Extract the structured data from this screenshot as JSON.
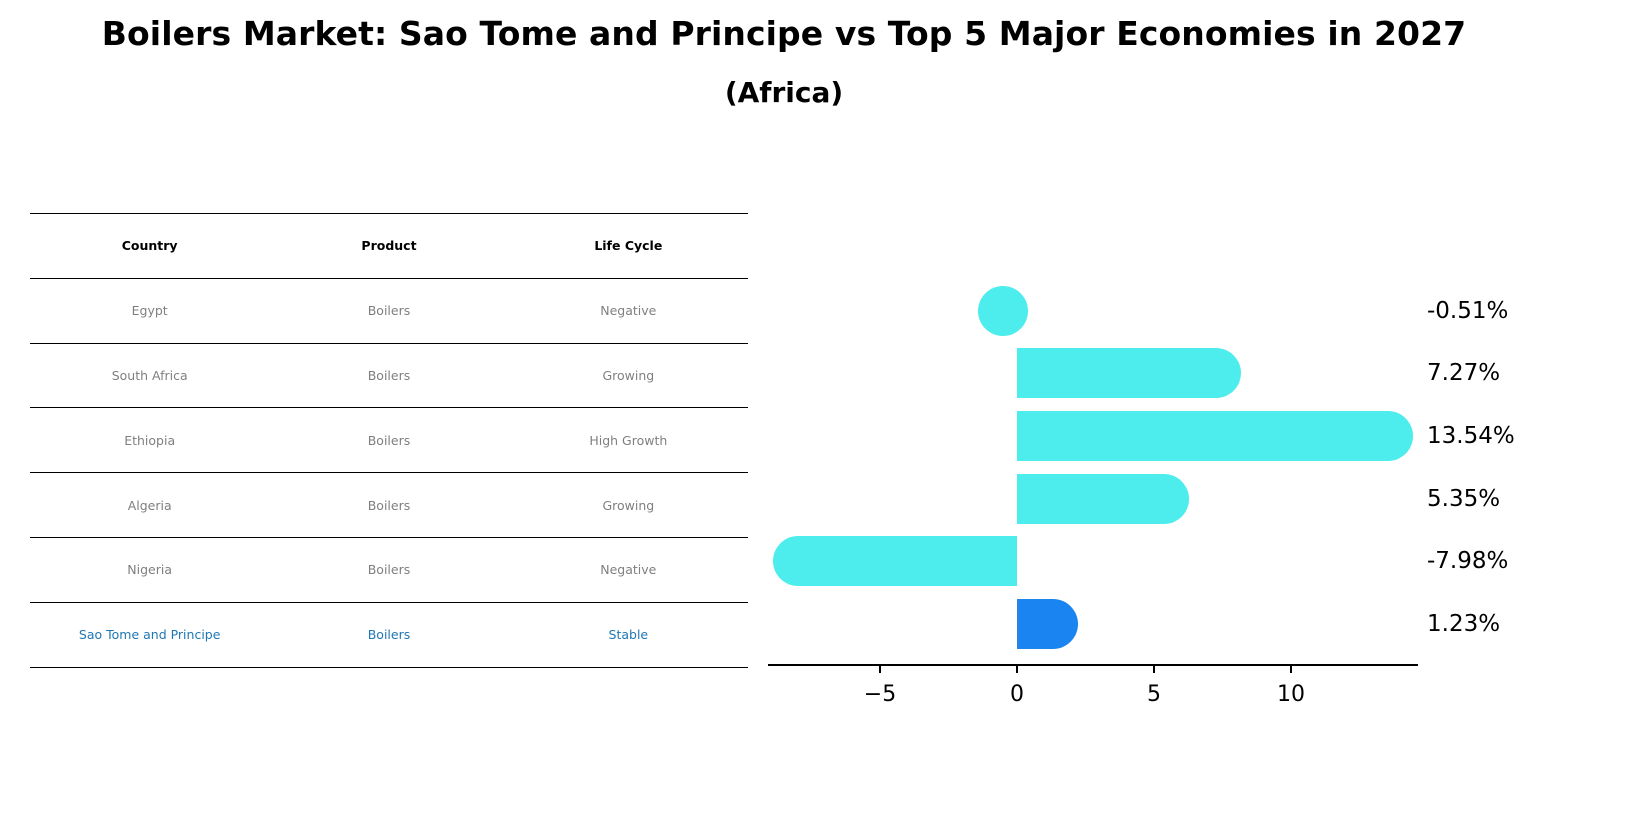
{
  "title": "Boilers Market: Sao Tome and Principe vs Top 5 Major Economies in 2027",
  "subtitle": "(Africa)",
  "table": {
    "headers": [
      "Country",
      "Product",
      "Life Cycle"
    ],
    "rows": [
      {
        "country": "Egypt",
        "product": "Boilers",
        "life_cycle": "Negative",
        "highlight": false
      },
      {
        "country": "South Africa",
        "product": "Boilers",
        "life_cycle": "Growing",
        "highlight": false
      },
      {
        "country": "Ethiopia",
        "product": "Boilers",
        "life_cycle": "High Growth",
        "highlight": false
      },
      {
        "country": "Algeria",
        "product": "Boilers",
        "life_cycle": "Growing",
        "highlight": false
      },
      {
        "country": "Nigeria",
        "product": "Boilers",
        "life_cycle": "Negative",
        "highlight": false
      },
      {
        "country": "Sao Tome and Principe",
        "product": "Boilers",
        "life_cycle": "Stable",
        "highlight": true
      }
    ],
    "text_color": "#7f7f7f",
    "highlight_color": "#1f77b4"
  },
  "chart_data": {
    "type": "bar",
    "orientation": "horizontal",
    "title": "Boilers Market: Sao Tome and Principe vs Top 5 Major Economies in 2027",
    "subtitle": "(Africa)",
    "categories": [
      "Egypt",
      "South Africa",
      "Ethiopia",
      "Algeria",
      "Nigeria",
      "Sao Tome and Principe"
    ],
    "values": [
      -0.51,
      7.27,
      13.54,
      5.35,
      -7.98,
      1.23
    ],
    "value_labels": [
      "-0.51%",
      "7.27%",
      "13.54%",
      "5.35%",
      "-7.98%",
      "1.23%"
    ],
    "colors": [
      "#4deded",
      "#4deded",
      "#4deded",
      "#4deded",
      "#4deded",
      "#1a85f0"
    ],
    "xlabel": "",
    "ylabel": "",
    "xticks": [
      -5,
      0,
      5,
      10
    ],
    "xtick_labels": [
      "−5",
      "0",
      "5",
      "10"
    ],
    "xlim": [
      -9.1,
      14.6
    ],
    "grid": false,
    "legend": null,
    "bar_style": "rounded caps"
  }
}
